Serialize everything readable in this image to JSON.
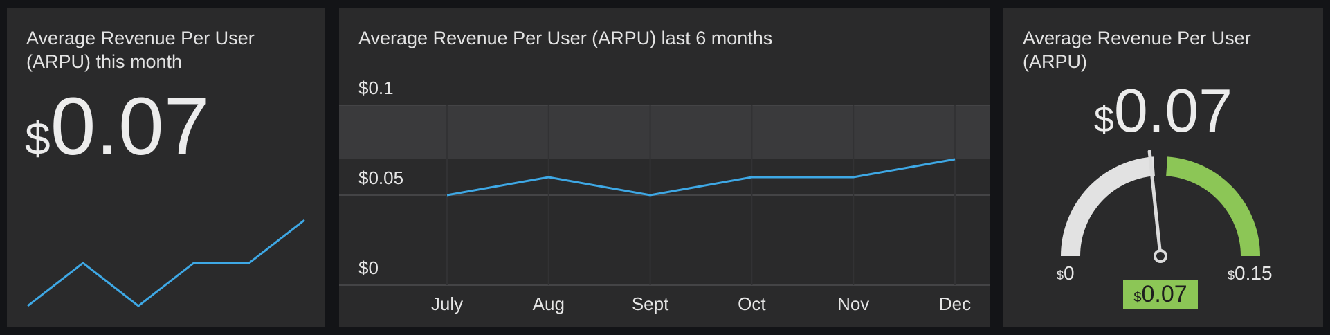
{
  "colors": {
    "background": "#131417",
    "panel": "#2a2a2b",
    "line": "#3ea8e5",
    "gauge_good": "#8cc656",
    "gauge_base": "#e2e2e2",
    "band": "#3a3a3c"
  },
  "panel_month": {
    "title": "Average Revenue Per User (ARPU) this month",
    "currency": "$",
    "value": "0.07",
    "sparkline": [
      0.05,
      0.06,
      0.05,
      0.06,
      0.06,
      0.07
    ]
  },
  "panel_trend": {
    "title": "Average Revenue Per User (ARPU) last 6 months"
  },
  "chart_data": {
    "type": "line",
    "title": "Average Revenue Per User (ARPU) last 6 months",
    "categories": [
      "July",
      "Aug",
      "Sept",
      "Oct",
      "Nov",
      "Dec"
    ],
    "series": [
      {
        "values": [
          0.05,
          0.06,
          0.05,
          0.06,
          0.06,
          0.07
        ]
      }
    ],
    "y_ticks": [
      "$0.1",
      "$0.05",
      "$0"
    ],
    "ylim": [
      0,
      0.1
    ],
    "highlight_band": [
      0.07,
      0.1
    ],
    "grid": true
  },
  "panel_gauge": {
    "title": "Average Revenue Per User (ARPU)",
    "currency": "$",
    "value": "0.07",
    "min_currency": "$",
    "min_label": "0",
    "max_currency": "$",
    "max_label": "0.15",
    "badge_currency": "$",
    "badge_value": "0.07",
    "gauge_value": 0.07,
    "gauge_min": 0,
    "gauge_max": 0.15,
    "threshold": 0.075
  }
}
